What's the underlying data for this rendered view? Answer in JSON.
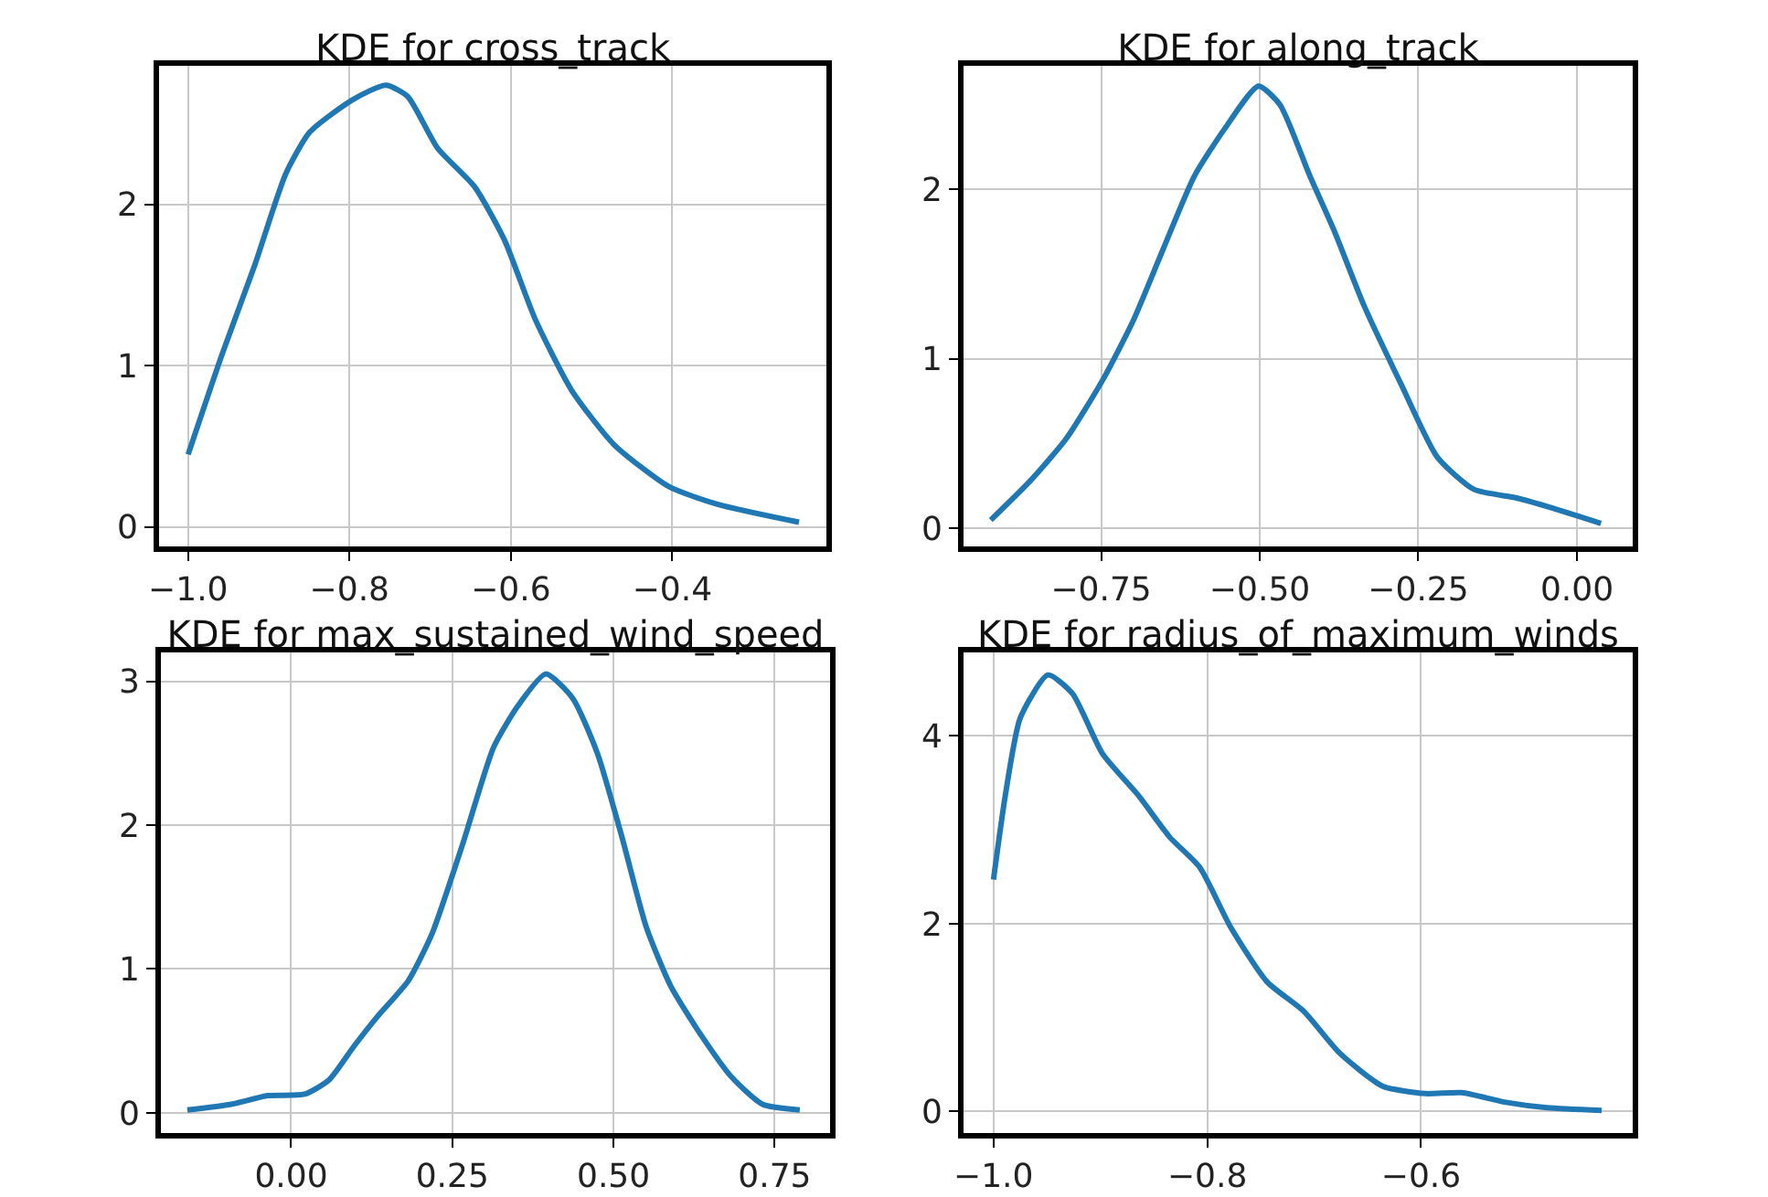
{
  "chart_data": [
    {
      "type": "line",
      "title": "KDE for cross_track",
      "grid": true,
      "color": "#1f77b4",
      "x": [
        -1.0,
        -0.958,
        -0.917,
        -0.879,
        -0.849,
        -0.796,
        -0.755,
        -0.728,
        -0.691,
        -0.645,
        -0.608,
        -0.57,
        -0.525,
        -0.472,
        -0.404,
        -0.343,
        -0.243
      ],
      "values": [
        0.45,
        1.07,
        1.63,
        2.19,
        2.45,
        2.65,
        2.74,
        2.67,
        2.35,
        2.11,
        1.78,
        1.29,
        0.85,
        0.51,
        0.25,
        0.14,
        0.03
      ],
      "xlim": [
        -1.036,
        -0.209
      ],
      "xticks": [
        {
          "value": -1,
          "label": "−1.0"
        },
        -0.8,
        -0.6,
        -0.4
      ],
      "ylim": [
        -0.12,
        2.86
      ],
      "yticks": [
        0,
        1,
        2
      ]
    },
    {
      "type": "line",
      "title": "KDE for along_track",
      "grid": true,
      "color": "#1f77b4",
      "x": [
        -0.924,
        -0.862,
        -0.805,
        -0.747,
        -0.699,
        -0.651,
        -0.603,
        -0.555,
        -0.502,
        -0.468,
        -0.421,
        -0.383,
        -0.335,
        -0.277,
        -0.22,
        -0.162,
        -0.095,
        -0.038,
        0.038
      ],
      "values": [
        0.05,
        0.28,
        0.53,
        0.88,
        1.23,
        1.66,
        2.08,
        2.36,
        2.61,
        2.5,
        2.08,
        1.76,
        1.31,
        0.85,
        0.42,
        0.23,
        0.18,
        0.12,
        0.03
      ],
      "xlim": [
        -0.967,
        0.088
      ],
      "xticks": [
        -0.75,
        {
          "value": -0.5,
          "label": "−0.50"
        },
        -0.25,
        {
          "value": 0,
          "label": "0.00"
        }
      ],
      "ylim": [
        -0.106,
        2.73
      ],
      "yticks": [
        0,
        1,
        2
      ]
    },
    {
      "type": "line",
      "title": "KDE for max_sustained_wind_speed",
      "grid": true,
      "color": "#1f77b4",
      "x": [
        -0.161,
        -0.093,
        -0.036,
        0.021,
        0.059,
        0.097,
        0.134,
        0.182,
        0.219,
        0.267,
        0.314,
        0.352,
        0.395,
        0.437,
        0.475,
        0.513,
        0.551,
        0.589,
        0.636,
        0.683,
        0.731,
        0.789
      ],
      "values": [
        0.02,
        0.06,
        0.12,
        0.13,
        0.23,
        0.46,
        0.67,
        0.92,
        1.25,
        1.88,
        2.54,
        2.83,
        3.05,
        2.88,
        2.5,
        1.92,
        1.29,
        0.88,
        0.54,
        0.25,
        0.06,
        0.02
      ],
      "xlim": [
        -0.202,
        0.836
      ],
      "xticks": [
        {
          "value": 0,
          "label": "0.00"
        },
        0.25,
        {
          "value": 0.5,
          "label": "0.50"
        },
        0.75
      ],
      "ylim": [
        -0.14,
        3.2
      ],
      "yticks": [
        0,
        1,
        2,
        3
      ]
    },
    {
      "type": "line",
      "title": "KDE for radius_of_maximum_winds",
      "grid": true,
      "color": "#1f77b4",
      "x": [
        -1.0,
        -0.989,
        -0.975,
        -0.949,
        -0.926,
        -0.898,
        -0.864,
        -0.835,
        -0.807,
        -0.778,
        -0.744,
        -0.71,
        -0.676,
        -0.636,
        -0.596,
        -0.562,
        -0.522,
        -0.482,
        -0.431
      ],
      "values": [
        2.47,
        3.36,
        4.19,
        4.65,
        4.45,
        3.81,
        3.36,
        2.92,
        2.6,
        1.96,
        1.38,
        1.07,
        0.62,
        0.27,
        0.19,
        0.2,
        0.1,
        0.04,
        0.01
      ],
      "xlim": [
        -1.028,
        -0.402
      ],
      "xticks": [
        {
          "value": -1,
          "label": "−1.0"
        },
        -0.8,
        -0.6
      ],
      "ylim": [
        -0.23,
        4.89
      ],
      "yticks": [
        0,
        2,
        4
      ]
    }
  ]
}
